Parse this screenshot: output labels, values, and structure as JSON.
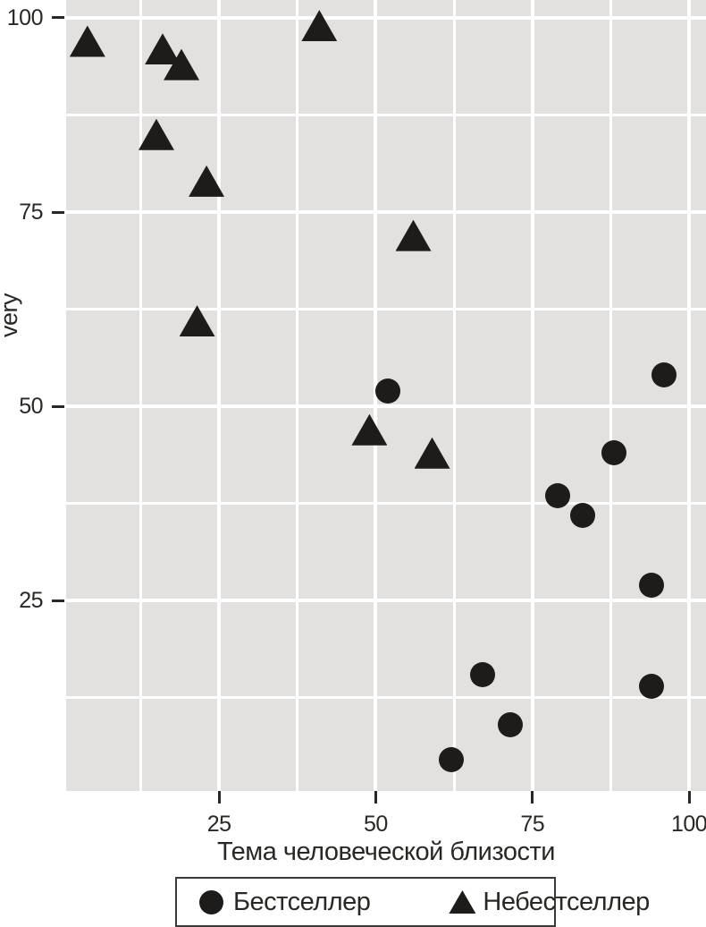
{
  "figure": {
    "background": "#ffffff"
  },
  "chart_data": {
    "type": "scatter",
    "title": "",
    "xlabel": "Тема человеческой близости",
    "ylabel": "very",
    "xlim": [
      0.6,
      102.7
    ],
    "ylim": [
      0.5,
      102.3
    ],
    "grid": "major and minor white gridlines on grey panel",
    "legend_position": "bottom",
    "xticks": [
      {
        "value": 25,
        "label": "25"
      },
      {
        "value": 50,
        "label": "50"
      },
      {
        "value": 75,
        "label": "75"
      },
      {
        "value": 100,
        "label": "100"
      }
    ],
    "yticks": [
      {
        "value": 25,
        "label": "25"
      },
      {
        "value": 50,
        "label": "50"
      },
      {
        "value": 75,
        "label": "75"
      },
      {
        "value": 100,
        "label": "100"
      }
    ],
    "x_minor": [
      12.5,
      37.5,
      62.5,
      87.5
    ],
    "y_minor": [
      12.5,
      37.5,
      62.5,
      87.5
    ],
    "series": [
      {
        "name": "Бестселлер",
        "marker": "circle",
        "points": [
          {
            "x": 52,
            "y": 52
          },
          {
            "x": 96,
            "y": 54
          },
          {
            "x": 88,
            "y": 44
          },
          {
            "x": 79,
            "y": 38.5
          },
          {
            "x": 83,
            "y": 36
          },
          {
            "x": 94,
            "y": 27
          },
          {
            "x": 67,
            "y": 15.5
          },
          {
            "x": 94,
            "y": 14
          },
          {
            "x": 71.5,
            "y": 9
          },
          {
            "x": 62,
            "y": 4.5
          }
        ]
      },
      {
        "name": "Небестселлер",
        "marker": "triangle",
        "points": [
          {
            "x": 4,
            "y": 97
          },
          {
            "x": 16,
            "y": 96
          },
          {
            "x": 19,
            "y": 94
          },
          {
            "x": 41,
            "y": 99
          },
          {
            "x": 15,
            "y": 85
          },
          {
            "x": 23,
            "y": 79
          },
          {
            "x": 56,
            "y": 72
          },
          {
            "x": 21.5,
            "y": 61
          },
          {
            "x": 49,
            "y": 47
          },
          {
            "x": 59,
            "y": 44
          }
        ]
      }
    ],
    "colors": {
      "panel_bg": "#e2e1df",
      "grid": "#ffffff",
      "marker": "#1e1c1a",
      "text": "#2a2825",
      "legend_border": "#3a3a38"
    }
  }
}
